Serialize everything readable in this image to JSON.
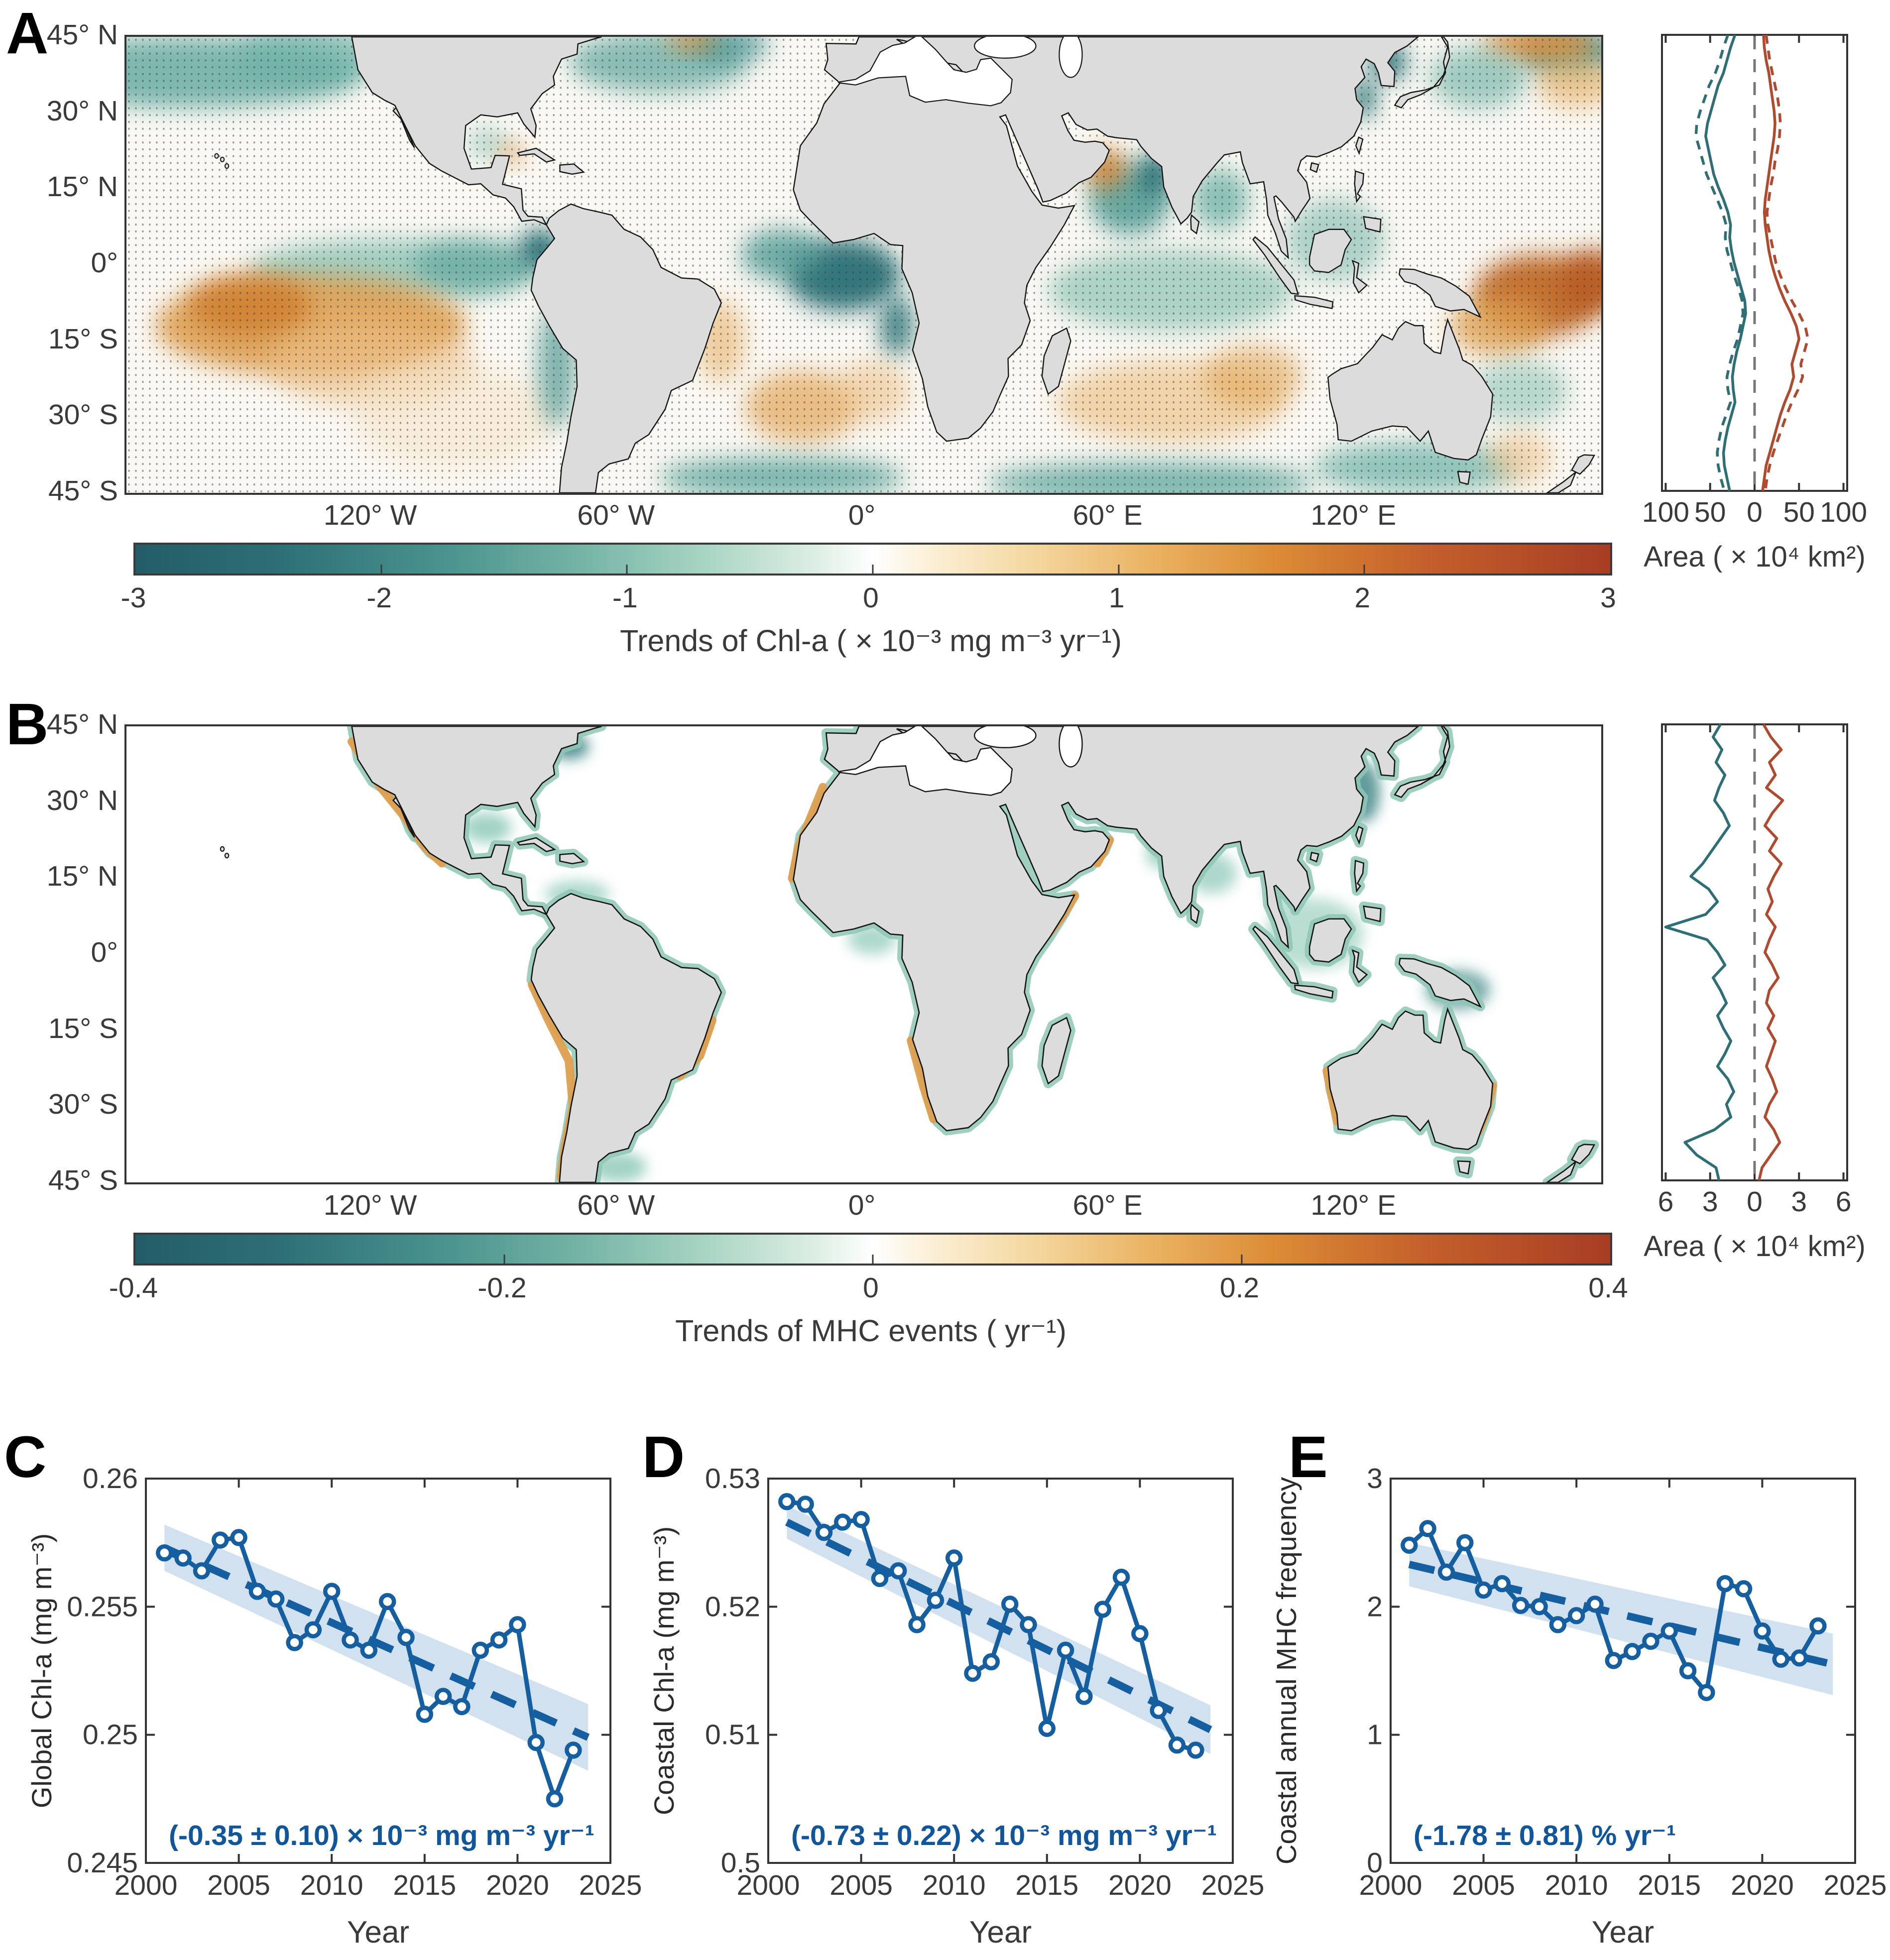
{
  "colors": {
    "series_blue": "#155FA0",
    "annotation_blue": "#11569B",
    "band_blue": "#C9DCEC",
    "profile_teal": "#2E6F76",
    "profile_red": "#B04A2E",
    "zero_line_gray": "#777777",
    "colormap_negative_end": "#235C68",
    "colormap_positive_end": "#A83D24",
    "land_gray": "#DCDCDC",
    "coast_black": "#151515"
  },
  "panels": {
    "A": {
      "letter": "A",
      "lat_ticks": [
        "45° N",
        "30° N",
        "15° N",
        "0°",
        "15° S",
        "30° S",
        "45° S"
      ],
      "lon_ticks": [
        "120° W",
        "60° W",
        "0°",
        "60° E",
        "120° E"
      ],
      "colorbar": {
        "tick_labels": [
          "-3",
          "-2",
          "-1",
          "0",
          "1",
          "2",
          "3"
        ],
        "label": "Trends of Chl-a ( × 10⁻³ mg m⁻³ yr⁻¹)"
      },
      "area_axis": {
        "tick_labels": [
          "100",
          "50",
          "0",
          "50",
          "100"
        ],
        "label": "Area ( × 10⁴ km²)"
      }
    },
    "B": {
      "letter": "B",
      "lat_ticks": [
        "45° N",
        "30° N",
        "15° N",
        "0°",
        "15° S",
        "30° S",
        "45° S"
      ],
      "lon_ticks": [
        "120° W",
        "60° W",
        "0°",
        "60° E",
        "120° E"
      ],
      "colorbar": {
        "tick_labels": [
          "-0.4",
          "-0.2",
          "0",
          "0.2",
          "0.4"
        ],
        "label": "Trends of MHC events ( yr⁻¹)"
      },
      "area_axis": {
        "tick_labels": [
          "6",
          "3",
          "0",
          "3",
          "6"
        ],
        "label": "Area ( × 10⁴ km²)"
      }
    },
    "C": {
      "letter": "C"
    },
    "D": {
      "letter": "D"
    },
    "E": {
      "letter": "E"
    }
  },
  "chart_data": [
    {
      "id": "map_A",
      "type": "heatmap",
      "title": "Trends of Chl-a ( × 10⁻³ mg m⁻³ yr⁻¹)",
      "lat_range": [
        -45,
        45
      ],
      "lon_range": [
        -180,
        180
      ],
      "lat_ticks_deg": [
        45,
        30,
        15,
        0,
        -15,
        -30,
        -45
      ],
      "lon_ticks_deg": [
        -120,
        -60,
        0,
        60,
        120
      ],
      "colorbar_ticks": [
        -3,
        -2,
        -1,
        0,
        1,
        2,
        3
      ],
      "legend_position": "bottom",
      "notes": "diverging teal-white-orange map with stippling; negative (teal) in N Pacific, N Atlantic, equatorial Atlantic, Arabian Sea; positive (orange) in S Pacific gyre, W Pacific warm pool, S Indian Ocean, NW Pacific"
    },
    {
      "id": "area_profile_A",
      "type": "line",
      "orientation": "vertical_profile",
      "xlabel": "Area ( × 10⁴ km²)",
      "x_ticks": [
        100,
        50,
        0,
        50,
        100
      ],
      "x_max": 100,
      "lat_start": 45,
      "lat_step": -2.5,
      "series": [
        {
          "name": "negative-trend-area-solid",
          "color": "#2E6F76",
          "style": "solid",
          "side": "left",
          "values": [
            22,
            27,
            31,
            35,
            41,
            45,
            49,
            53,
            55,
            52,
            49,
            46,
            41,
            35,
            30,
            27,
            28,
            26,
            23,
            19,
            15,
            11,
            10,
            13,
            16,
            20,
            23,
            25,
            24,
            22,
            26,
            30,
            33,
            35,
            34,
            31,
            28
          ]
        },
        {
          "name": "negative-trend-area-dashed",
          "color": "#2E6F76",
          "style": "dashed",
          "side": "left",
          "values": [
            30,
            35,
            39,
            44,
            51,
            56,
            61,
            65,
            66,
            62,
            58,
            54,
            48,
            42,
            36,
            32,
            33,
            31,
            27,
            23,
            18,
            14,
            13,
            16,
            19,
            24,
            28,
            31,
            30,
            27,
            32,
            37,
            40,
            42,
            41,
            38,
            34
          ]
        },
        {
          "name": "positive-trend-area-solid",
          "color": "#B04A2E",
          "style": "solid",
          "side": "right",
          "values": [
            10,
            11,
            13,
            16,
            18,
            20,
            22,
            23,
            22,
            20,
            18,
            16,
            14,
            12,
            11,
            12,
            14,
            16,
            19,
            23,
            28,
            34,
            41,
            47,
            50,
            46,
            42,
            44,
            40,
            34,
            29,
            25,
            21,
            17,
            13,
            11,
            9
          ]
        },
        {
          "name": "positive-trend-area-dashed",
          "color": "#B04A2E",
          "style": "dashed",
          "side": "right",
          "values": [
            13,
            15,
            17,
            20,
            23,
            26,
            28,
            29,
            28,
            26,
            23,
            21,
            18,
            16,
            14,
            15,
            18,
            21,
            24,
            29,
            35,
            42,
            50,
            57,
            60,
            56,
            52,
            54,
            49,
            42,
            36,
            31,
            26,
            21,
            17,
            14,
            12
          ]
        }
      ]
    },
    {
      "id": "map_B",
      "type": "heatmap",
      "title": "Trends of MHC events ( yr⁻¹)",
      "lat_range": [
        -45,
        45
      ],
      "lon_range": [
        -180,
        180
      ],
      "lat_ticks_deg": [
        45,
        30,
        15,
        0,
        -15,
        -30,
        -45
      ],
      "lon_ticks_deg": [
        -120,
        -60,
        0,
        60,
        120
      ],
      "colorbar_ticks": [
        -0.4,
        -0.2,
        0,
        0.2,
        0.4
      ],
      "legend_position": "bottom",
      "notes": "coastal-only diverging map; teal strips on most shelves, orange along W Mexico, Peru-Chile, NW/SW Africa, Horn of Africa, W Australia, E Brazil"
    },
    {
      "id": "area_profile_B",
      "type": "line",
      "orientation": "vertical_profile",
      "xlabel": "Area ( × 10⁴ km²)",
      "x_ticks": [
        6,
        3,
        0,
        3,
        6
      ],
      "x_max": 6,
      "lat_start": 45,
      "lat_step": -2.5,
      "series": [
        {
          "name": "negative-trend-area",
          "color": "#2E6F76",
          "style": "solid",
          "side": "left",
          "values": [
            2.3,
            2.8,
            2.2,
            2.6,
            2.0,
            2.4,
            2.7,
            2.1,
            1.7,
            2.3,
            2.9,
            3.5,
            4.3,
            3.1,
            2.5,
            3.3,
            6.0,
            3.2,
            2.5,
            2.0,
            2.8,
            2.3,
            1.9,
            2.5,
            2.1,
            1.6,
            2.0,
            2.5,
            1.8,
            1.4,
            1.9,
            1.6,
            2.7,
            4.7,
            3.9,
            2.6,
            2.4
          ]
        },
        {
          "name": "positive-trend-area",
          "color": "#B04A2E",
          "style": "solid",
          "side": "right",
          "values": [
            0.6,
            1.1,
            1.8,
            1.0,
            1.4,
            0.8,
            1.9,
            1.2,
            0.7,
            1.5,
            1.0,
            1.8,
            1.3,
            0.9,
            1.2,
            0.8,
            1.4,
            1.0,
            0.7,
            1.2,
            1.6,
            1.0,
            0.8,
            1.3,
            0.9,
            1.4,
            1.1,
            0.8,
            1.2,
            1.5,
            1.0,
            0.7,
            1.3,
            1.7,
            1.1,
            0.5,
            0.3
          ]
        }
      ]
    },
    {
      "id": "global_chla",
      "type": "line",
      "xlabel": "Year",
      "ylabel": "Global Chl-a (mg m⁻³)",
      "xlim": [
        2000,
        2025
      ],
      "ylim": [
        0.245,
        0.26
      ],
      "x_ticks": [
        2000,
        2005,
        2010,
        2015,
        2020,
        2025
      ],
      "x_tick_labels": [
        "2000",
        "2005",
        "2010",
        "2015",
        "2020",
        "2025"
      ],
      "y_ticks": [
        0.245,
        0.25,
        0.255,
        0.26
      ],
      "y_tick_labels": [
        "0.245",
        "0.25",
        "0.255",
        "0.26"
      ],
      "years": [
        2001,
        2002,
        2003,
        2004,
        2005,
        2006,
        2007,
        2008,
        2009,
        2010,
        2011,
        2012,
        2013,
        2014,
        2015,
        2016,
        2017,
        2018,
        2019,
        2020,
        2021,
        2022,
        2023
      ],
      "values": [
        0.2571,
        0.2569,
        0.2564,
        0.2576,
        0.2577,
        0.2556,
        0.2553,
        0.2536,
        0.2541,
        0.2556,
        0.2537,
        0.2533,
        0.2552,
        0.2538,
        0.2508,
        0.2515,
        0.2511,
        0.2533,
        0.2537,
        0.2543,
        0.2497,
        0.2475,
        0.2494
      ],
      "trend": {
        "x": [
          2001,
          2023.8
        ],
        "y": [
          0.2573,
          0.2499
        ],
        "band_halfwidth": [
          0.0009,
          0.0013
        ]
      },
      "annotation": "(-0.35 ± 0.10) × 10⁻³ mg m⁻³ yr⁻¹"
    },
    {
      "id": "coastal_chla",
      "type": "line",
      "xlabel": "Year",
      "ylabel": "Coastal Chl-a (mg m⁻³)",
      "xlim": [
        2000,
        2025
      ],
      "ylim": [
        0.5,
        0.53
      ],
      "x_ticks": [
        2000,
        2005,
        2010,
        2015,
        2020,
        2025
      ],
      "x_tick_labels": [
        "2000",
        "2005",
        "2010",
        "2015",
        "2020",
        "2025"
      ],
      "y_ticks": [
        0.5,
        0.51,
        0.52,
        0.53
      ],
      "y_tick_labels": [
        "0.5",
        "0.51",
        "0.52",
        "0.53"
      ],
      "years": [
        2001,
        2002,
        2003,
        2004,
        2005,
        2006,
        2007,
        2008,
        2009,
        2010,
        2011,
        2012,
        2013,
        2014,
        2015,
        2016,
        2017,
        2018,
        2019,
        2020,
        2021,
        2022,
        2023
      ],
      "values": [
        0.5282,
        0.528,
        0.5258,
        0.5266,
        0.5268,
        0.5222,
        0.5228,
        0.5186,
        0.5205,
        0.5238,
        0.5148,
        0.5157,
        0.5202,
        0.5186,
        0.5105,
        0.5166,
        0.513,
        0.5198,
        0.5223,
        0.5179,
        0.5119,
        0.5092,
        0.5088
      ],
      "trend": {
        "x": [
          2001,
          2023.8
        ],
        "y": [
          0.5266,
          0.5104
        ],
        "band_halfwidth": [
          0.0013,
          0.0019
        ]
      },
      "annotation": "(-0.73 ± 0.22) × 10⁻³ mg m⁻³ yr⁻¹"
    },
    {
      "id": "coastal_mhc",
      "type": "line",
      "xlabel": "Year",
      "ylabel": "Coastal annual MHC frequency",
      "xlim": [
        2000,
        2025
      ],
      "ylim": [
        0,
        3
      ],
      "x_ticks": [
        2000,
        2005,
        2010,
        2015,
        2020,
        2025
      ],
      "x_tick_labels": [
        "2000",
        "2005",
        "2010",
        "2015",
        "2020",
        "2025"
      ],
      "y_ticks": [
        0,
        1,
        2,
        3
      ],
      "y_tick_labels": [
        "0",
        "1",
        "2",
        "3"
      ],
      "years": [
        2001,
        2002,
        2003,
        2004,
        2005,
        2006,
        2007,
        2008,
        2009,
        2010,
        2011,
        2012,
        2013,
        2014,
        2015,
        2016,
        2017,
        2018,
        2019,
        2020,
        2021,
        2022,
        2023
      ],
      "values": [
        2.48,
        2.61,
        2.27,
        2.5,
        2.13,
        2.18,
        2.01,
        2.0,
        1.86,
        1.93,
        2.02,
        1.58,
        1.65,
        1.73,
        1.81,
        1.5,
        1.33,
        2.18,
        2.14,
        1.81,
        1.59,
        1.6,
        1.85
      ],
      "trend": {
        "x": [
          2001,
          2023.8
        ],
        "y": [
          2.33,
          1.55
        ],
        "band_halfwidth": [
          0.17,
          0.24
        ]
      },
      "annotation": "(-1.78 ± 0.81) % yr⁻¹"
    }
  ]
}
